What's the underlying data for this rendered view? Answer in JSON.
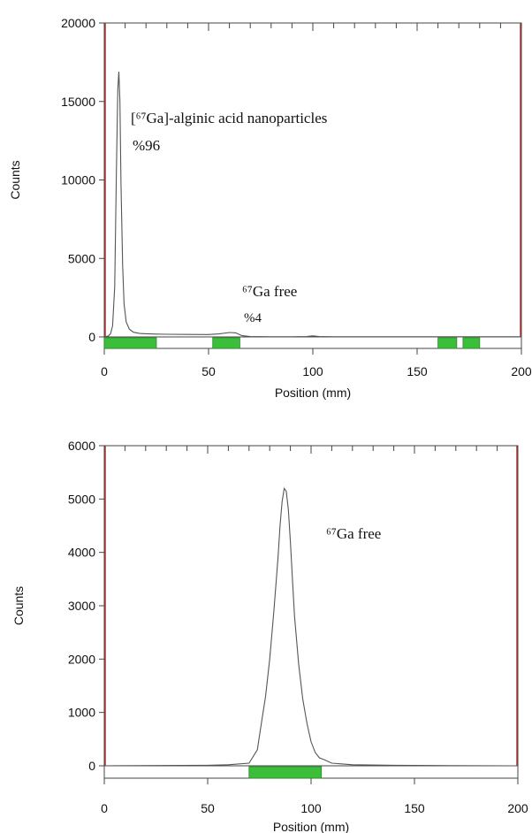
{
  "chart_data": [
    {
      "type": "line",
      "panel": "a",
      "xlabel": "Position (mm)",
      "ylabel": "Counts",
      "xlim": [
        0,
        200
      ],
      "ylim": [
        0,
        20000
      ],
      "xticks": [
        0,
        50,
        100,
        150,
        200
      ],
      "yticks": [
        0,
        5000,
        10000,
        15000,
        20000
      ],
      "grid": false,
      "series": [
        {
          "x": [
            0,
            2,
            3,
            4,
            5,
            5.8,
            6.5,
            7,
            7.5,
            8,
            8.8,
            9.5,
            10.5,
            12,
            14,
            17,
            20,
            25,
            30,
            40,
            50,
            55,
            60,
            63,
            66,
            70,
            80,
            90,
            97,
            100,
            103,
            110,
            130,
            150,
            170,
            190,
            200
          ],
          "y": [
            0,
            60,
            200,
            700,
            3200,
            10500,
            15800,
            16900,
            15000,
            9800,
            4500,
            2100,
            950,
            500,
            300,
            220,
            200,
            180,
            170,
            160,
            150,
            190,
            280,
            260,
            80,
            20,
            10,
            10,
            20,
            70,
            20,
            10,
            10,
            10,
            10,
            10,
            10
          ]
        }
      ],
      "regions": [
        [
          0,
          25
        ],
        [
          52,
          65
        ],
        [
          160,
          169
        ],
        [
          172,
          180
        ]
      ],
      "annotations": {
        "peak1_label": "[⁶⁷Ga]-alginic acid nanoparticles",
        "peak1_pct": "%96",
        "peak2_label": "⁶⁷Ga free",
        "peak2_pct": "%4"
      }
    },
    {
      "type": "line",
      "panel": "b",
      "xlabel": "Position (mm)",
      "ylabel": "Counts",
      "xlim": [
        0,
        200
      ],
      "ylim": [
        0,
        6000
      ],
      "xticks": [
        0,
        50,
        100,
        150,
        200
      ],
      "yticks": [
        0,
        1000,
        2000,
        3000,
        4000,
        5000,
        6000
      ],
      "grid": false,
      "series": [
        {
          "x": [
            0,
            50,
            60,
            70,
            74,
            76,
            78,
            80,
            82,
            84,
            85,
            86,
            87,
            88,
            89,
            90,
            91,
            92,
            94,
            96,
            98,
            100,
            102,
            104,
            106,
            110,
            120,
            140,
            160,
            200
          ],
          "y": [
            0,
            10,
            20,
            50,
            300,
            800,
            1300,
            2000,
            2900,
            3900,
            4500,
            4950,
            5200,
            5150,
            4800,
            4200,
            3500,
            2800,
            1900,
            1250,
            800,
            450,
            250,
            150,
            120,
            50,
            20,
            10,
            5,
            0
          ]
        }
      ],
      "regions": [
        [
          70,
          105
        ]
      ],
      "annotations": {
        "peak_label": "⁶⁷Ga free"
      }
    }
  ],
  "colors": {
    "line": "#555555",
    "region": "#3bbf3b",
    "region_border": "#2a8a2a",
    "boundary": "#b03030"
  }
}
